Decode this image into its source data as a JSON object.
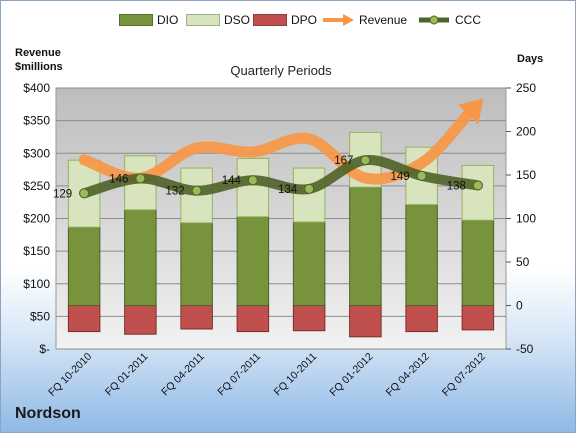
{
  "company": "Nordson",
  "chart_data": {
    "type": "bar",
    "title": "Quarterly Periods",
    "ylabel_left_line1": "Revenue",
    "ylabel_left_line2": "$millions",
    "ylabel_right": "Days",
    "categories": [
      "FQ 10-2010",
      "FQ 01-2011",
      "FQ 04-2011",
      "FQ 07-2011",
      "FQ 10-2011",
      "FQ 01-2012",
      "FQ 04-2012",
      "FQ 07-2012"
    ],
    "left_ticks": [
      "$400",
      "$350",
      "$300",
      "$250",
      "$200",
      "$150",
      "$100",
      "$50",
      "$-"
    ],
    "right_ticks": [
      "250",
      "200",
      "150",
      "100",
      "50",
      "0",
      "-50"
    ],
    "ylim_left": [
      0,
      400
    ],
    "ylim_right": [
      -50,
      250
    ],
    "series": [
      {
        "name": "DIO",
        "color": "#77933c",
        "values": [
          90,
          110,
          95,
          102,
          96,
          136,
          116,
          98
        ]
      },
      {
        "name": "DSO",
        "color": "#d7e4bd",
        "values": [
          77,
          62,
          63,
          67,
          62,
          63,
          66,
          63
        ]
      },
      {
        "name": "DPO",
        "color": "#c0504d",
        "values": [
          -30,
          -33,
          -27,
          -30,
          -29,
          -36,
          -30,
          -28
        ]
      },
      {
        "name": "Revenue",
        "color": "#f79646",
        "values": [
          290,
          262,
          308,
          302,
          322,
          262,
          285,
          375
        ]
      },
      {
        "name": "CCC",
        "color": "#4f6228",
        "values": [
          129,
          146,
          132,
          144,
          134,
          167,
          149,
          138
        ]
      }
    ],
    "ccc_labels": [
      "129",
      "146",
      "132",
      "144",
      "134",
      "167",
      "149",
      "138"
    ],
    "grid": true,
    "legend_position": "top"
  }
}
